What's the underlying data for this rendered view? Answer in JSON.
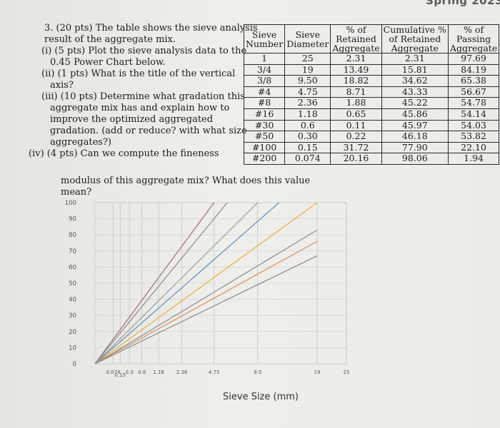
{
  "header": {
    "corner_text": "Spring 2023"
  },
  "question": {
    "intro": "3. (20 pts) The table shows the sieve analysis result of the aggregate mix.",
    "part_i": "(i) (5 pts) Plot the sieve analysis data to the 0.45 Power Chart below.",
    "part_ii": "(ii) (1 pts) What is the title of the vertical axis?",
    "part_iii": "(iii) (10 pts) Determine what gradation this aggregate mix has and explain how to improve the optimized aggregated gradation. (add or reduce? with what size aggregates?)",
    "part_iv_a": "(iv) (4 pts) Can we compute the fineness",
    "part_iv_b": "modulus of this aggregate mix? What does this value mean?"
  },
  "table": {
    "headers": [
      [
        "Sieve",
        "Number"
      ],
      [
        "Sieve",
        "Diameter"
      ],
      [
        "% of",
        "Retained",
        "Aggregate"
      ],
      [
        "Cumulative %",
        "of Retained",
        "Aggregate"
      ],
      [
        "% of",
        "Passing",
        "Aggregate"
      ]
    ],
    "rows": [
      [
        "1",
        "25",
        "2.31",
        "2.31",
        "97.69"
      ],
      [
        "3/4",
        "19",
        "13.49",
        "15.81",
        "84.19"
      ],
      [
        "3/8",
        "9.50",
        "18.82",
        "34.62",
        "65.38"
      ],
      [
        "#4",
        "4.75",
        "8.71",
        "43.33",
        "56.67"
      ],
      [
        "#8",
        "2.36",
        "1.88",
        "45.22",
        "54.78"
      ],
      [
        "#16",
        "1.18",
        "0.65",
        "45.86",
        "54.14"
      ],
      [
        "#30",
        "0.6",
        "0.11",
        "45.97",
        "54.03"
      ],
      [
        "#50",
        "0.30",
        "0.22",
        "46.18",
        "53.82"
      ],
      [
        "#100",
        "0.15",
        "31.72",
        "77.90",
        "22.10"
      ],
      [
        "#200",
        "0.074",
        "20.16",
        "98.06",
        "1.94"
      ]
    ]
  },
  "chart_data": {
    "type": "line",
    "title": "",
    "xlabel": "Sieve Size (mm)",
    "ylabel": "",
    "x_scale": "power 0.45",
    "ylim": [
      0,
      100
    ],
    "yticks": [
      "0",
      "10",
      "20",
      "30",
      "40",
      "50",
      "60",
      "70",
      "80",
      "90",
      "100"
    ],
    "xticks": [
      {
        "label": "0.074",
        "value": 0.074
      },
      {
        "label": "0.15",
        "value": 0.15
      },
      {
        "label": "0.3",
        "value": 0.3
      },
      {
        "label": "0.6",
        "value": 0.6
      },
      {
        "label": "1.18",
        "value": 1.18
      },
      {
        "label": "2.36",
        "value": 2.36
      },
      {
        "label": "4.75",
        "value": 4.75
      },
      {
        "label": "9.5",
        "value": 9.5
      },
      {
        "label": "19",
        "value": 19
      },
      {
        "label": "25",
        "value": 25
      }
    ],
    "grid": true,
    "series": [
      {
        "color": "#a06f6a",
        "x": [
          0,
          4.75
        ],
        "y": [
          0,
          100
        ]
      },
      {
        "color": "#8a8a8a",
        "x": [
          0,
          6.0
        ],
        "y": [
          0,
          100
        ]
      },
      {
        "color": "#9a9a9a",
        "x": [
          0,
          9.5
        ],
        "y": [
          0,
          100
        ]
      },
      {
        "color": "#5b8bb8",
        "x": [
          0,
          12.5
        ],
        "y": [
          0,
          100
        ]
      },
      {
        "color": "#e8b13c",
        "x": [
          0,
          19
        ],
        "y": [
          0,
          100
        ]
      },
      {
        "color": "#8a8a8a",
        "x": [
          0,
          19
        ],
        "y": [
          0,
          83
        ]
      },
      {
        "color": "#d48f5a",
        "x": [
          0,
          19
        ],
        "y": [
          0,
          76
        ]
      },
      {
        "color": "#888888",
        "x": [
          0,
          19
        ],
        "y": [
          0,
          67
        ]
      }
    ]
  }
}
